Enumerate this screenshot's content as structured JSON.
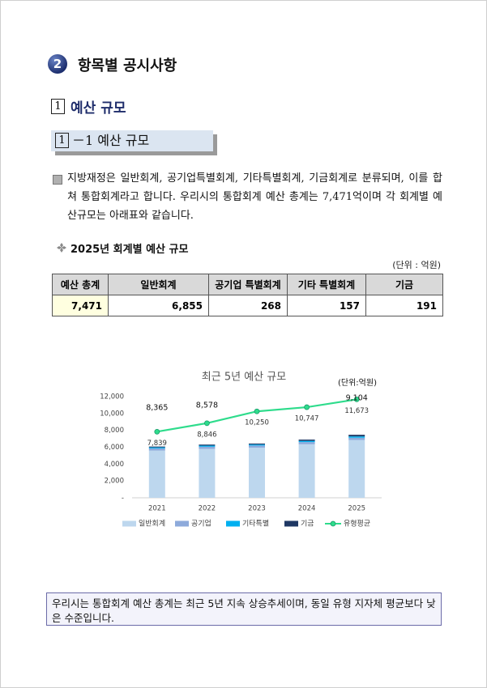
{
  "heading": {
    "number": "2",
    "title": "항목별 공시사항"
  },
  "section": {
    "number": "1",
    "title": "예산 규모"
  },
  "subsection": {
    "number": "1",
    "title": "－1 예산 규모"
  },
  "paragraph": "지방재정은 일반회계, 공기업특별회계, 기타특별회계, 기금회계로 분류되며, 이를 합쳐 통합회계라고 합니다. 우리시의 통합회계 예산 총계는 7,471억이며 각 회계별 예산규모는 아래표와 같습니다.",
  "table": {
    "title": "2025년 회계별 예산 규모",
    "unit": "(단위 : 억원)",
    "headers": [
      "예산 총계",
      "일반회계",
      "공기업 특별회계",
      "기타 특별회계",
      "기금"
    ],
    "rows": [
      [
        "7,471",
        "6,855",
        "268",
        "157",
        "191"
      ]
    ]
  },
  "chart_data": {
    "type": "bar",
    "stacked": true,
    "title": "최근 5년 예산 규모",
    "unit": "(단위:억원)",
    "categories": [
      "2021",
      "2022",
      "2023",
      "2024",
      "2025"
    ],
    "series": [
      {
        "name": "일반회계",
        "color": "#bdd7ee",
        "values": [
          5600,
          5800,
          5950,
          6350,
          6855
        ]
      },
      {
        "name": "공기업",
        "color": "#8eaadb",
        "values": [
          260,
          260,
          250,
          260,
          268
        ]
      },
      {
        "name": "기타특별",
        "color": "#00b0f0",
        "values": [
          120,
          130,
          120,
          140,
          157
        ]
      },
      {
        "name": "기금",
        "color": "#1f3864",
        "values": [
          100,
          120,
          110,
          150,
          191
        ]
      },
      {
        "name": "유형평균",
        "type": "line",
        "color": "#2edc8c",
        "values": [
          7839,
          8846,
          10250,
          10747,
          11673
        ],
        "value_labels": [
          "7,839",
          "8,846",
          "10,250",
          "10,747",
          "11,673"
        ]
      }
    ],
    "annotations": [
      "8,365",
      "8,578",
      "9,104"
    ],
    "ylim": [
      0,
      12000
    ],
    "yticks": [
      {
        "value": 0,
        "label": "-"
      },
      {
        "value": 2000,
        "label": "2,000"
      },
      {
        "value": 4000,
        "label": "4,000"
      },
      {
        "value": 6000,
        "label": "6,000"
      },
      {
        "value": 8000,
        "label": "8,000"
      },
      {
        "value": 10000,
        "label": "10,000"
      },
      {
        "value": 12000,
        "label": "12,000"
      }
    ],
    "grid": false
  },
  "note": "우리시는 통합회계 예산 총계는 최근 5년 지속 상승추세이며, 동일 유형 지자체 평균보다 낮은 수준입니다."
}
